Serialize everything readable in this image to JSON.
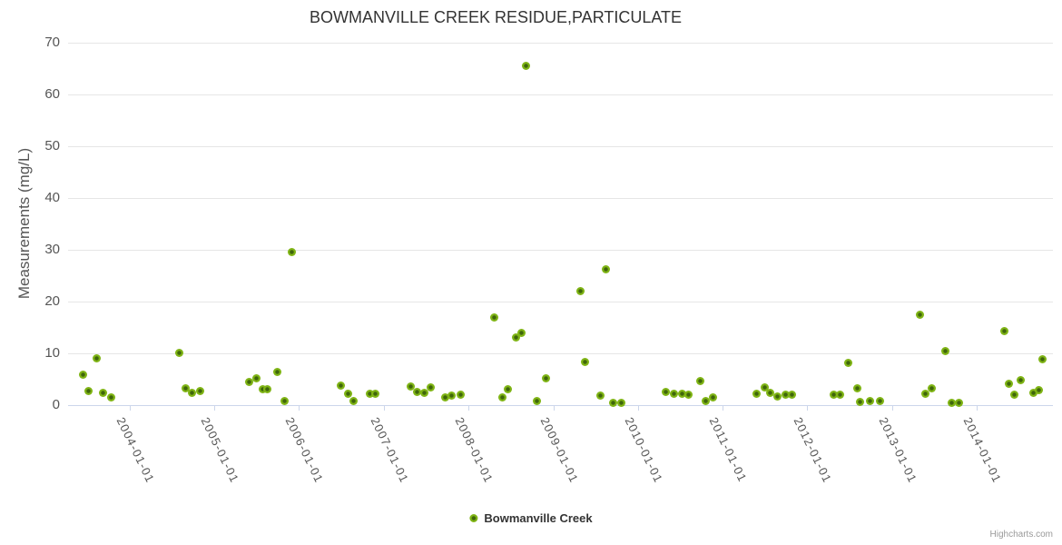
{
  "title": "BOWMANVILLE CREEK RESIDUE,PARTICULATE",
  "credits": "Highcharts.com",
  "legend": {
    "position": "bottom-center",
    "items": [
      {
        "label": "Bowmanville Creek",
        "marker_color": "#7fb415"
      }
    ]
  },
  "y_axis": {
    "title": "Measurements (mg/L)",
    "ticks": [
      0,
      10,
      20,
      30,
      40,
      50,
      60,
      70
    ]
  },
  "x_axis": {
    "ticks": [
      "2004-01-01",
      "2005-01-01",
      "2006-01-01",
      "2007-01-01",
      "2008-01-01",
      "2009-01-01",
      "2010-01-01",
      "2011-01-01",
      "2012-01-01",
      "2013-01-01",
      "2014-01-01"
    ]
  },
  "colors": {
    "point_fill": "#7fb415",
    "point_core": "#3f660b",
    "grid": "#e6e6e6",
    "axis_line": "#ccd6eb",
    "title_text": "#333333",
    "axis_label": "#555555",
    "credit": "#999999"
  },
  "chart_data": {
    "type": "scatter",
    "title": "BOWMANVILLE CREEK RESIDUE,PARTICULATE",
    "xlabel": "",
    "ylabel": "Measurements (mg/L)",
    "ylim": [
      0,
      70
    ],
    "xlim": [
      "2003-04-01",
      "2014-12-01"
    ],
    "grid": "horizontal-only",
    "legend_position": "bottom-center",
    "series": [
      {
        "name": "Bowmanville Creek",
        "color": "#7fb415",
        "points": [
          [
            "2003-06-13",
            5.9
          ],
          [
            "2003-07-10",
            2.8
          ],
          [
            "2003-08-14",
            9.1
          ],
          [
            "2003-09-10",
            2.4
          ],
          [
            "2003-10-12",
            1.6
          ],
          [
            "2004-08-03",
            10.1
          ],
          [
            "2004-08-28",
            3.3
          ],
          [
            "2004-09-28",
            2.5
          ],
          [
            "2004-11-01",
            2.7
          ],
          [
            "2005-06-01",
            4.5
          ],
          [
            "2005-07-02",
            5.2
          ],
          [
            "2005-07-28",
            3.1
          ],
          [
            "2005-08-19",
            3.1
          ],
          [
            "2005-09-30",
            6.5
          ],
          [
            "2005-10-30",
            0.8
          ],
          [
            "2005-12-01",
            29.6
          ],
          [
            "2006-07-01",
            3.8
          ],
          [
            "2006-08-01",
            2.3
          ],
          [
            "2006-08-22",
            0.8
          ],
          [
            "2006-11-03",
            2.2
          ],
          [
            "2006-11-24",
            2.3
          ],
          [
            "2007-04-28",
            3.6
          ],
          [
            "2007-05-26",
            2.6
          ],
          [
            "2007-06-24",
            2.5
          ],
          [
            "2007-07-23",
            3.4
          ],
          [
            "2007-09-24",
            1.6
          ],
          [
            "2007-10-22",
            1.9
          ],
          [
            "2007-11-29",
            2.1
          ],
          [
            "2008-04-21",
            17.0
          ],
          [
            "2008-05-25",
            1.6
          ],
          [
            "2008-06-18",
            3.2
          ],
          [
            "2008-07-24",
            13.1
          ],
          [
            "2008-08-18",
            14.0
          ],
          [
            "2008-09-07",
            65.6
          ],
          [
            "2008-10-24",
            0.8
          ],
          [
            "2008-11-29",
            5.2
          ],
          [
            "2009-04-27",
            22.0
          ],
          [
            "2009-05-17",
            8.4
          ],
          [
            "2009-07-22",
            1.9
          ],
          [
            "2009-08-14",
            26.2
          ],
          [
            "2009-09-15",
            0.5
          ],
          [
            "2009-10-22",
            0.5
          ],
          [
            "2010-04-30",
            2.6
          ],
          [
            "2010-06-05",
            2.2
          ],
          [
            "2010-07-09",
            2.2
          ],
          [
            "2010-08-08",
            2.0
          ],
          [
            "2010-09-28",
            4.7
          ],
          [
            "2010-10-21",
            0.8
          ],
          [
            "2010-11-19",
            1.5
          ],
          [
            "2011-05-27",
            2.3
          ],
          [
            "2011-07-01",
            3.4
          ],
          [
            "2011-07-26",
            2.5
          ],
          [
            "2011-08-26",
            1.8
          ],
          [
            "2011-09-28",
            2.0
          ],
          [
            "2011-10-26",
            2.0
          ],
          [
            "2012-04-23",
            2.0
          ],
          [
            "2012-05-22",
            2.1
          ],
          [
            "2012-06-24",
            8.2
          ],
          [
            "2012-08-02",
            3.3
          ],
          [
            "2012-08-15",
            0.7
          ],
          [
            "2012-09-27",
            0.8
          ],
          [
            "2012-11-09",
            0.9
          ],
          [
            "2013-04-30",
            17.5
          ],
          [
            "2013-05-24",
            2.3
          ],
          [
            "2013-06-22",
            3.3
          ],
          [
            "2013-08-17",
            10.5
          ],
          [
            "2013-09-14",
            0.5
          ],
          [
            "2013-10-17",
            0.5
          ],
          [
            "2014-05-01",
            14.4
          ],
          [
            "2014-05-18",
            4.1
          ],
          [
            "2014-06-11",
            2.1
          ],
          [
            "2014-07-09",
            4.9
          ],
          [
            "2014-09-01",
            2.4
          ],
          [
            "2014-09-24",
            3.0
          ],
          [
            "2014-10-11",
            9.0
          ]
        ]
      }
    ]
  }
}
